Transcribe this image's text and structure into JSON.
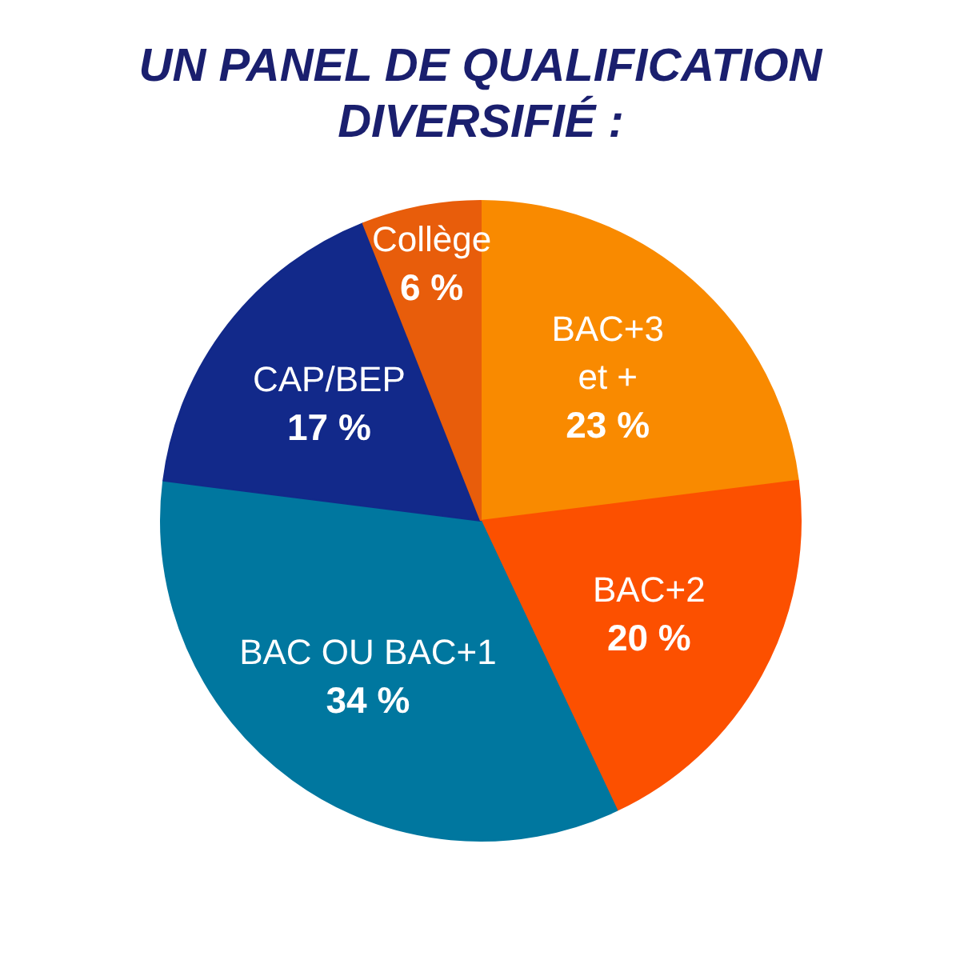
{
  "chart_data": {
    "type": "pie",
    "title": "UN PANEL DE QUALIFICATION\nDIVERSIFIÉ :",
    "categories": [
      "BAC+3\net +",
      "BAC+2",
      "BAC OU BAC+1",
      "CAP/BEP",
      "Collège"
    ],
    "values": [
      23,
      20,
      34,
      17,
      6
    ],
    "colors": [
      "#f98a00",
      "#fc5000",
      "#00779f",
      "#12298a",
      "#e85d0b"
    ],
    "value_labels": [
      "23 %",
      "20 %",
      "34 %",
      "17 %",
      "6 %"
    ]
  }
}
